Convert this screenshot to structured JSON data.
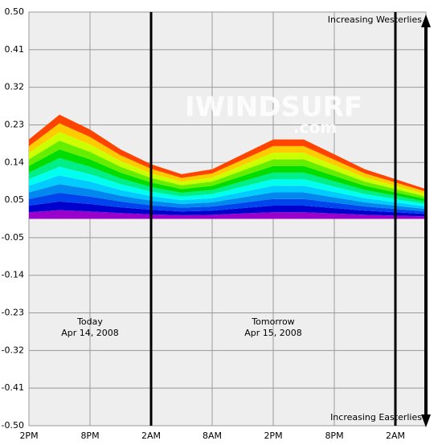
{
  "chart_data": {
    "type": "stacked_area",
    "categories": [
      "2PM",
      null,
      "8PM",
      null,
      "2AM",
      null,
      "8AM",
      null,
      "2PM",
      null,
      "8PM",
      null,
      "2AM",
      null
    ],
    "series": [
      {
        "color": "#9900cc",
        "values": [
          0.016,
          0.021,
          0.018,
          0.014,
          0.011,
          0.009,
          0.01,
          0.013,
          0.016,
          0.016,
          0.013,
          0.01,
          0.008,
          0.006
        ]
      },
      {
        "color": "#0000cc",
        "values": [
          0.016,
          0.021,
          0.018,
          0.014,
          0.011,
          0.009,
          0.01,
          0.013,
          0.016,
          0.016,
          0.013,
          0.01,
          0.008,
          0.006
        ]
      },
      {
        "color": "#0044ee",
        "values": [
          0.016,
          0.021,
          0.018,
          0.014,
          0.011,
          0.009,
          0.01,
          0.013,
          0.016,
          0.016,
          0.013,
          0.01,
          0.008,
          0.006
        ]
      },
      {
        "color": "#0088ee",
        "values": [
          0.016,
          0.021,
          0.018,
          0.014,
          0.011,
          0.009,
          0.01,
          0.013,
          0.016,
          0.016,
          0.013,
          0.01,
          0.008,
          0.006
        ]
      },
      {
        "color": "#00ccff",
        "values": [
          0.016,
          0.021,
          0.018,
          0.014,
          0.011,
          0.009,
          0.01,
          0.013,
          0.016,
          0.016,
          0.013,
          0.01,
          0.008,
          0.006
        ]
      },
      {
        "color": "#00ffee",
        "values": [
          0.016,
          0.021,
          0.018,
          0.014,
          0.011,
          0.009,
          0.01,
          0.013,
          0.016,
          0.016,
          0.013,
          0.01,
          0.008,
          0.006
        ]
      },
      {
        "color": "#00ee88",
        "values": [
          0.016,
          0.021,
          0.018,
          0.014,
          0.011,
          0.009,
          0.01,
          0.013,
          0.016,
          0.016,
          0.013,
          0.01,
          0.008,
          0.006
        ]
      },
      {
        "color": "#00dd00",
        "values": [
          0.016,
          0.021,
          0.018,
          0.014,
          0.011,
          0.009,
          0.01,
          0.013,
          0.016,
          0.016,
          0.013,
          0.01,
          0.008,
          0.006
        ]
      },
      {
        "color": "#66ee00",
        "values": [
          0.016,
          0.021,
          0.018,
          0.014,
          0.011,
          0.009,
          0.01,
          0.013,
          0.016,
          0.016,
          0.013,
          0.01,
          0.008,
          0.006
        ]
      },
      {
        "color": "#ccff00",
        "values": [
          0.016,
          0.021,
          0.018,
          0.014,
          0.011,
          0.009,
          0.01,
          0.013,
          0.016,
          0.016,
          0.013,
          0.01,
          0.008,
          0.006
        ]
      },
      {
        "color": "#ffcc00",
        "values": [
          0.016,
          0.021,
          0.018,
          0.014,
          0.011,
          0.009,
          0.01,
          0.013,
          0.016,
          0.016,
          0.013,
          0.01,
          0.008,
          0.006
        ]
      },
      {
        "color": "#ff4400",
        "values": [
          0.016,
          0.021,
          0.018,
          0.014,
          0.011,
          0.009,
          0.01,
          0.013,
          0.016,
          0.016,
          0.013,
          0.01,
          0.008,
          0.006
        ]
      }
    ],
    "ylim": [
      -0.5,
      0.5
    ],
    "yticks": [
      {
        "value": 0.5,
        "label": "0.50"
      },
      {
        "value": 0.4091,
        "label": "0.41"
      },
      {
        "value": 0.3182,
        "label": "0.32"
      },
      {
        "value": 0.2273,
        "label": "0.23"
      },
      {
        "value": 0.1364,
        "label": "0.14"
      },
      {
        "value": 0.0455,
        "label": "0.05"
      },
      {
        "value": -0.0455,
        "label": "-0.05"
      },
      {
        "value": -0.1364,
        "label": "-0.14"
      },
      {
        "value": -0.2273,
        "label": "-0.23"
      },
      {
        "value": -0.3182,
        "label": "-0.32"
      },
      {
        "value": -0.4091,
        "label": "-0.41"
      },
      {
        "value": -0.5,
        "label": "-0.50"
      }
    ],
    "grid": true,
    "annotations": [
      "Increasing Westerlies",
      "Increasing Easterlies",
      "Today",
      "Apr 14, 2008",
      "Tomorrow",
      "Apr 15, 2008"
    ],
    "watermark": [
      "IWINDSURF",
      ".com"
    ]
  }
}
